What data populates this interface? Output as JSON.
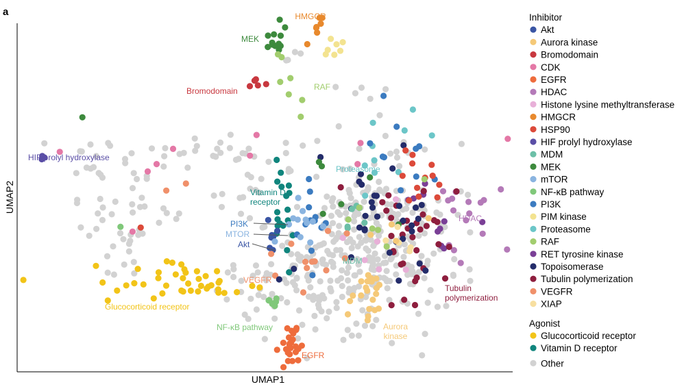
{
  "chart_data": {
    "type": "scatter",
    "panel_label": "a",
    "title": "",
    "xlabel": "UMAP1",
    "ylabel": "UMAP2",
    "xlim": [
      0,
      100
    ],
    "ylim": [
      0,
      100
    ],
    "axis_ticks": "none",
    "grid": false,
    "legend_position": "right",
    "legend": {
      "groups": [
        {
          "title": "Inhibitor",
          "entries": [
            {
              "name": "Akt",
              "color": "#3a55a4"
            },
            {
              "name": "Aurora kinase",
              "color": "#f5c978"
            },
            {
              "name": "Bromodomain",
              "color": "#c8383f"
            },
            {
              "name": "CDK",
              "color": "#e478a6"
            },
            {
              "name": "EGFR",
              "color": "#ee6c3c"
            },
            {
              "name": "HDAC",
              "color": "#b47ab8"
            },
            {
              "name": "Histone lysine methyltransferase",
              "color": "#e8b0d8"
            },
            {
              "name": "HMGCR",
              "color": "#e8892d"
            },
            {
              "name": "HSP90",
              "color": "#dc4a3a"
            },
            {
              "name": "HIF prolyl hydroxylase",
              "color": "#5a4ea6"
            },
            {
              "name": "MDM",
              "color": "#6cbfa7"
            },
            {
              "name": "MEK",
              "color": "#3d8a3d"
            },
            {
              "name": "mTOR",
              "color": "#8ab4e0"
            },
            {
              "name": "NF-κB pathway",
              "color": "#80c87a"
            },
            {
              "name": "PI3K",
              "color": "#3b7bc0"
            },
            {
              "name": "PIM kinase",
              "color": "#f3e390"
            },
            {
              "name": "Proteasome",
              "color": "#6cc6c8"
            },
            {
              "name": "RAF",
              "color": "#a2cd6e"
            },
            {
              "name": "RET tyrosine kinase",
              "color": "#7a3f96"
            },
            {
              "name": "Topoisomerase",
              "color": "#242c6a"
            },
            {
              "name": "Tubulin polymerization",
              "color": "#8e1e3e"
            },
            {
              "name": "VEGFR",
              "color": "#f0906a"
            },
            {
              "name": "XIAP",
              "color": "#f7dfa0"
            }
          ]
        },
        {
          "title": "Agonist",
          "entries": [
            {
              "name": "Glucocorticoid receptor",
              "color": "#f2c418"
            },
            {
              "name": "Vitamin D receptor",
              "color": "#10857d"
            }
          ]
        },
        {
          "title": "",
          "entries": [
            {
              "name": "Other",
              "color": "#d2d2d2"
            }
          ]
        }
      ]
    },
    "annotations": [
      {
        "text": "HMGCR",
        "category": "HMGCR",
        "color": "#e8892d"
      },
      {
        "text": "MEK",
        "category": "MEK",
        "color": "#3d8a3d"
      },
      {
        "text": "Bromodomain",
        "category": "Bromodomain",
        "color": "#c8383f"
      },
      {
        "text": "RAF",
        "category": "RAF",
        "color": "#a2cd6e"
      },
      {
        "text": "HIF prolyl hydroxylase",
        "category": "HIF prolyl hydroxylase",
        "color": "#5a4ea6"
      },
      {
        "text": "Proteasome",
        "category": "Proteasome",
        "color": "#6cc6c8"
      },
      {
        "text": "Vitamin D receptor",
        "category": "Vitamin D receptor",
        "color": "#10857d"
      },
      {
        "text": "PI3K",
        "category": "PI3K",
        "color": "#3b7bc0"
      },
      {
        "text": "MTOR",
        "category": "mTOR",
        "color": "#8ab4e0"
      },
      {
        "text": "Akt",
        "category": "Akt",
        "color": "#3a55a4"
      },
      {
        "text": "HDAC",
        "category": "HDAC",
        "color": "#b47ab8"
      },
      {
        "text": "MDM",
        "category": "MDM",
        "color": "#6cbfa7"
      },
      {
        "text": "VEGFR",
        "category": "VEGFR",
        "color": "#f0906a"
      },
      {
        "text": "Tubulin polymerization",
        "category": "Tubulin polymerization",
        "color": "#8e1e3e"
      },
      {
        "text": "Glucocorticoid receptor",
        "category": "Glucocorticoid receptor",
        "color": "#f2c418"
      },
      {
        "text": "NF-κB pathway",
        "category": "NF-κB pathway",
        "color": "#80c87a"
      },
      {
        "text": "Aurora kinase",
        "category": "Aurora kinase",
        "color": "#f5c978"
      },
      {
        "text": "EGFR",
        "category": "EGFR",
        "color": "#ee6c3c"
      }
    ],
    "clusters": [
      {
        "category": "HMGCR",
        "center": [
          60.4,
          93.5
        ],
        "spread": [
          0.8,
          3.0
        ],
        "n": 7,
        "seed": 11
      },
      {
        "category": "PIM kinase",
        "center": [
          63.3,
          88.6
        ],
        "spread": [
          1.1,
          1.5
        ],
        "n": 7,
        "seed": 12
      },
      {
        "category": "MEK",
        "center": [
          52.8,
          90.5
        ],
        "spread": [
          1.2,
          2.2
        ],
        "n": 12,
        "seed": 13
      },
      {
        "category": "RAF",
        "center": [
          55.5,
          80.5
        ],
        "spread": [
          1.6,
          5.5
        ],
        "n": 7,
        "seed": 14
      },
      {
        "category": "Bromodomain",
        "center": [
          47.5,
          78.6
        ],
        "spread": [
          0.9,
          1.0
        ],
        "n": 6,
        "seed": 15
      },
      {
        "category": "HIF prolyl hydroxylase",
        "center": [
          5.4,
          58.9
        ],
        "spread": [
          0.5,
          0.3
        ],
        "n": 3,
        "seed": 16
      },
      {
        "category": "Vitamin D receptor",
        "center": [
          53.6,
          41.0
        ],
        "spread": [
          1.6,
          8.5
        ],
        "n": 18,
        "seed": 17
      },
      {
        "category": "Akt",
        "center": [
          52.1,
          36.0
        ],
        "spread": [
          1.0,
          3.0
        ],
        "n": 8,
        "seed": 18
      },
      {
        "category": "PI3K",
        "center": [
          58.8,
          40.2
        ],
        "spread": [
          2.5,
          5.5
        ],
        "n": 12,
        "seed": 19
      },
      {
        "category": "mTOR",
        "center": [
          58.5,
          38.7
        ],
        "spread": [
          2.5,
          5.5
        ],
        "n": 12,
        "seed": 20
      },
      {
        "category": "Glucocorticoid receptor",
        "center": [
          33.0,
          24.6
        ],
        "spread": [
          8.5,
          2.4
        ],
        "n": 42,
        "seed": 21
      },
      {
        "category": "EGFR",
        "center": [
          55.0,
          6.3
        ],
        "spread": [
          1.2,
          2.8
        ],
        "n": 24,
        "seed": 22
      },
      {
        "category": "NF-κB pathway",
        "center": [
          51.8,
          18.8
        ],
        "spread": [
          0.8,
          1.1
        ],
        "n": 7,
        "seed": 23
      },
      {
        "category": "Aurora kinase",
        "center": [
          71.3,
          20.4
        ],
        "spread": [
          2.3,
          4.0
        ],
        "n": 22,
        "seed": 24
      },
      {
        "category": "HDAC",
        "center": [
          89.0,
          40.5
        ],
        "spread": [
          3.2,
          6.0
        ],
        "n": 16,
        "seed": 25
      },
      {
        "category": "RET tyrosine kinase",
        "center": [
          84.0,
          45.0
        ],
        "spread": [
          3.5,
          6.0
        ],
        "n": 10,
        "seed": 26
      },
      {
        "category": "Tubulin polymerization",
        "center": [
          80.5,
          35.0
        ],
        "spread": [
          4.5,
          9.5
        ],
        "n": 34,
        "seed": 27
      },
      {
        "category": "Topoisomerase",
        "center": [
          74.5,
          42.5
        ],
        "spread": [
          6.0,
          10.0
        ],
        "n": 30,
        "seed": 28
      },
      {
        "category": "Proteasome",
        "center": [
          74.0,
          62.5
        ],
        "spread": [
          4.0,
          6.5
        ],
        "n": 10,
        "seed": 29
      },
      {
        "category": "MDM",
        "center": [
          68.5,
          40.8
        ],
        "spread": [
          2.0,
          3.0
        ],
        "n": 6,
        "seed": 30
      },
      {
        "category": "PI3K",
        "center": [
          78.5,
          62.0
        ],
        "spread": [
          3.5,
          8.0
        ],
        "n": 10,
        "seed": 31
      },
      {
        "category": "HSP90",
        "center": [
          80.0,
          51.0
        ],
        "spread": [
          2.8,
          4.5
        ],
        "n": 12,
        "seed": 32
      },
      {
        "category": "VEGFR",
        "center": [
          58.0,
          31.0
        ],
        "spread": [
          4.5,
          3.5
        ],
        "n": 12,
        "seed": 33
      },
      {
        "category": "VEGFR",
        "center": [
          29.5,
          50.0
        ],
        "spread": [
          3.5,
          1.5
        ],
        "n": 2,
        "seed": 34
      },
      {
        "category": "CDK",
        "center": [
          42.0,
          60.0
        ],
        "spread": [
          14.0,
          3.0
        ],
        "n": 9,
        "seed": 35
      },
      {
        "category": "MEK",
        "center": [
          67.5,
          53.5
        ],
        "spread": [
          4.0,
          6.0
        ],
        "n": 6,
        "seed": 36
      },
      {
        "category": "Histone lysine methyltransferase",
        "center": [
          70.0,
          33.0
        ],
        "spread": [
          6.0,
          5.0
        ],
        "n": 6,
        "seed": 37
      },
      {
        "category": "XIAP",
        "center": [
          78.0,
          36.0
        ],
        "spread": [
          3.0,
          3.0
        ],
        "n": 5,
        "seed": 38
      },
      {
        "category": "Aurora kinase",
        "center": [
          80.0,
          40.0
        ],
        "spread": [
          3.0,
          3.0
        ],
        "n": 4,
        "seed": 39
      },
      {
        "category": "RAF",
        "center": [
          75.0,
          41.0
        ],
        "spread": [
          4.0,
          6.0
        ],
        "n": 6,
        "seed": 40
      },
      {
        "category": "NF-κB pathway",
        "center": [
          22.0,
          40.0
        ],
        "spread": [
          0.6,
          0.6
        ],
        "n": 1,
        "seed": 41
      },
      {
        "category": "CDK",
        "center": [
          24.0,
          38.0
        ],
        "spread": [
          0.6,
          0.6
        ],
        "n": 1,
        "seed": 42
      },
      {
        "category": "HSP90",
        "center": [
          25.0,
          40.0
        ],
        "spread": [
          0.6,
          0.6
        ],
        "n": 1,
        "seed": 43
      },
      {
        "category": "MEK",
        "center": [
          12.8,
          69.5
        ],
        "spread": [
          0.4,
          0.4
        ],
        "n": 1,
        "seed": 44
      },
      {
        "category": "Topoisomerase",
        "center": [
          53.5,
          28.5
        ],
        "spread": [
          1.5,
          1.5
        ],
        "n": 2,
        "seed": 45
      },
      {
        "category": "Other",
        "center": [
          71.5,
          36.5
        ],
        "spread": [
          7.5,
          11.5
        ],
        "n": 300,
        "seed": 46
      },
      {
        "category": "Other",
        "center": [
          56.0,
          24.0
        ],
        "spread": [
          6.0,
          7.0
        ],
        "n": 70,
        "seed": 47
      },
      {
        "category": "Other",
        "center": [
          40.0,
          60.5
        ],
        "spread": [
          10.0,
          2.0
        ],
        "n": 28,
        "seed": 48
      },
      {
        "category": "Other",
        "center": [
          24.0,
          47.0
        ],
        "spread": [
          4.5,
          8.5
        ],
        "n": 36,
        "seed": 49
      },
      {
        "category": "Other",
        "center": [
          23.0,
          30.0
        ],
        "spread": [
          4.0,
          3.5
        ],
        "n": 10,
        "seed": 50
      },
      {
        "category": "Other",
        "center": [
          12.0,
          62.0
        ],
        "spread": [
          4.5,
          5.0
        ],
        "n": 6,
        "seed": 51
      },
      {
        "category": "Other",
        "center": [
          17.0,
          42.0
        ],
        "spread": [
          4.0,
          6.0
        ],
        "n": 8,
        "seed": 52
      },
      {
        "category": "Other",
        "center": [
          68.0,
          73.0
        ],
        "spread": [
          5.0,
          4.0
        ],
        "n": 5,
        "seed": 53
      },
      {
        "category": "Other",
        "center": [
          46.0,
          48.5
        ],
        "spread": [
          3.5,
          3.0
        ],
        "n": 12,
        "seed": 54
      },
      {
        "category": "Other",
        "center": [
          45.0,
          24.0
        ],
        "spread": [
          4.0,
          4.0
        ],
        "n": 14,
        "seed": 55
      },
      {
        "category": "Other",
        "center": [
          56.0,
          84.0
        ],
        "spread": [
          1.0,
          3.0
        ],
        "n": 4,
        "seed": 56
      }
    ]
  }
}
